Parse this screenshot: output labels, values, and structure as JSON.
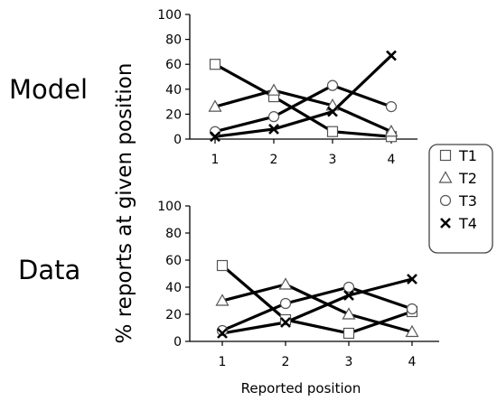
{
  "chart_data": [
    {
      "type": "line",
      "panel_label": "Model",
      "categories": [
        "1",
        "2",
        "3",
        "4"
      ],
      "ylim": [
        0,
        100
      ],
      "yticks": [
        "0",
        "20",
        "40",
        "60",
        "80",
        "100"
      ],
      "series": [
        {
          "name": "T1",
          "marker": "square",
          "values": [
            60,
            34,
            6,
            2
          ]
        },
        {
          "name": "T2",
          "marker": "triangle",
          "values": [
            26,
            39,
            27,
            6
          ]
        },
        {
          "name": "T3",
          "marker": "circle",
          "values": [
            6,
            18,
            43,
            26
          ]
        },
        {
          "name": "T4",
          "marker": "x",
          "values": [
            2,
            8,
            22,
            67
          ]
        }
      ]
    },
    {
      "type": "line",
      "panel_label": "Data",
      "categories": [
        "1",
        "2",
        "3",
        "4"
      ],
      "ylim": [
        0,
        100
      ],
      "yticks": [
        "0",
        "20",
        "40",
        "60",
        "80",
        "100"
      ],
      "series": [
        {
          "name": "T1",
          "marker": "square",
          "values": [
            56,
            16,
            6,
            22
          ]
        },
        {
          "name": "T2",
          "marker": "triangle",
          "values": [
            30,
            42,
            20,
            7
          ]
        },
        {
          "name": "T3",
          "marker": "circle",
          "values": [
            8,
            28,
            40,
            24
          ]
        },
        {
          "name": "T4",
          "marker": "x",
          "values": [
            6,
            14,
            34,
            46
          ]
        }
      ]
    }
  ],
  "ylabel": "% reports at given position",
  "xlabel": "Reported position",
  "legend": {
    "placement": "right",
    "items": [
      "T1",
      "T2",
      "T3",
      "T4"
    ]
  }
}
